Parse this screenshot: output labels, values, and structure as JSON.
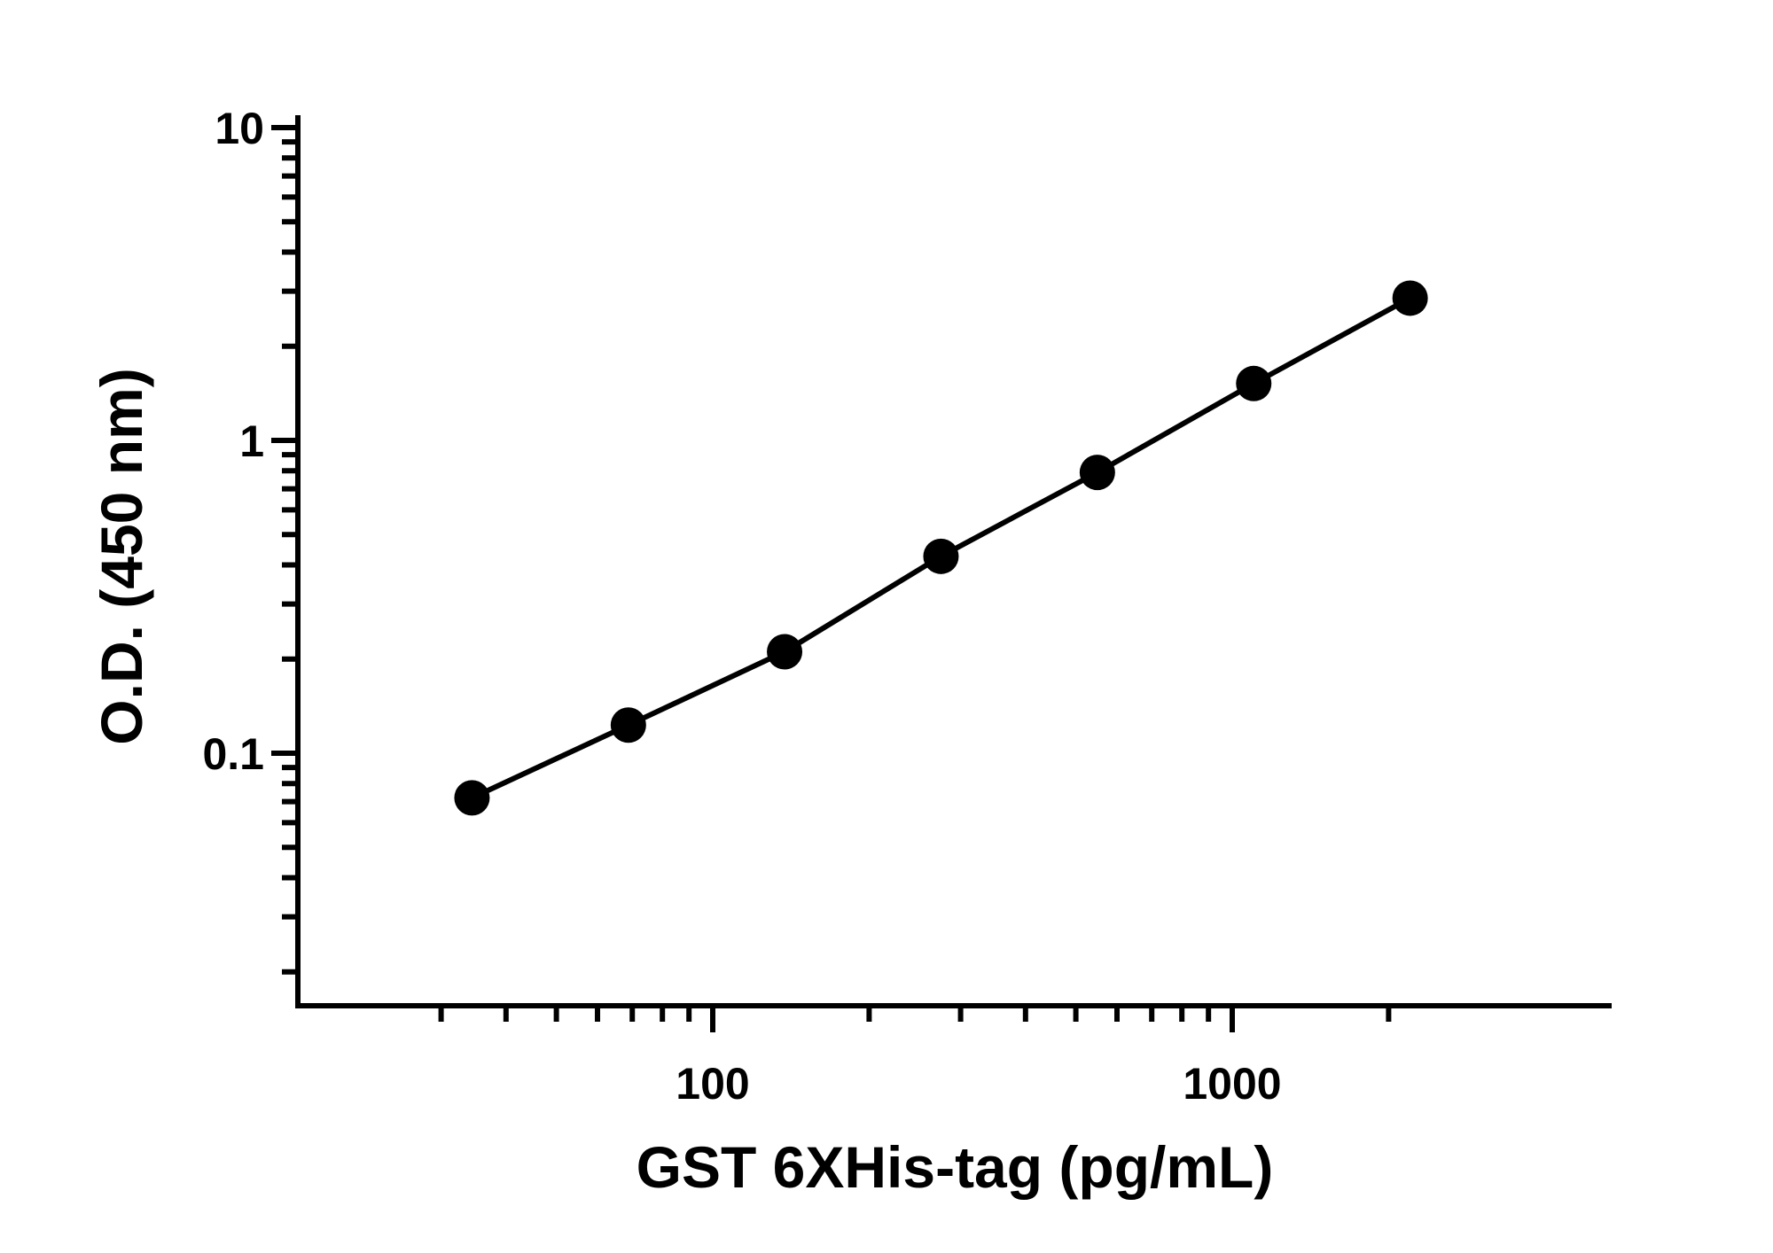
{
  "chart_data": {
    "type": "line",
    "title": "",
    "xlabel": "GST 6XHis-tag (pg/mL)",
    "ylabel": "O.D. (450 nm)",
    "x_scale": "log",
    "y_scale": "log",
    "xlim": [
      25,
      2500
    ],
    "ylim": [
      0.013,
      10
    ],
    "x_ticks": [
      100,
      1000
    ],
    "y_ticks": [
      0.1,
      1,
      10
    ],
    "x_tick_labels": [
      "100",
      "1000"
    ],
    "y_tick_labels": [
      "0.1",
      "1",
      "10"
    ],
    "grid": false,
    "legend": "none",
    "series": [
      {
        "x": [
          34.4,
          68.8,
          137.5,
          275,
          550,
          1100,
          2200
        ],
        "y": [
          0.072,
          0.123,
          0.211,
          0.426,
          0.79,
          1.52,
          2.85
        ]
      }
    ]
  },
  "colors": {
    "line": "#000000",
    "marker": "#000000",
    "axis": "#000000"
  }
}
